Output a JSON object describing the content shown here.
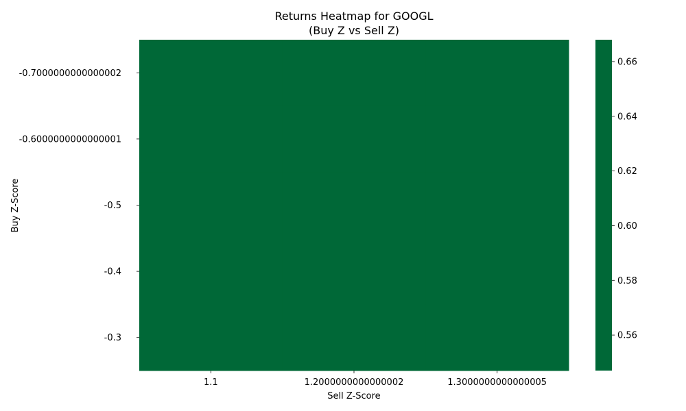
{
  "chart_data": {
    "type": "heatmap",
    "title": "Returns Heatmap for GOOGL",
    "subtitle": "(Buy Z vs Sell Z)",
    "xlabel": "Sell Z-Score",
    "ylabel": "Buy Z-Score",
    "x_categories": [
      "1.1",
      "1.2000000000000002",
      "1.3000000000000005"
    ],
    "y_categories": [
      "-0.7000000000000002",
      "-0.6000000000000001",
      "-0.5",
      "-0.4",
      "-0.3"
    ],
    "values": [
      [
        0.66,
        0.66,
        0.66
      ],
      [
        0.66,
        0.66,
        0.66
      ],
      [
        0.66,
        0.66,
        0.66
      ],
      [
        0.66,
        0.66,
        0.66
      ],
      [
        0.66,
        0.66,
        0.66
      ]
    ],
    "cell_color": "#006837",
    "colorbar": {
      "range": [
        0.547,
        0.668
      ],
      "ticks": [
        "0.56",
        "0.58",
        "0.60",
        "0.62",
        "0.64",
        "0.66"
      ],
      "tick_values": [
        0.56,
        0.58,
        0.6,
        0.62,
        0.64,
        0.66
      ],
      "color": "#006837"
    },
    "grid": false
  }
}
